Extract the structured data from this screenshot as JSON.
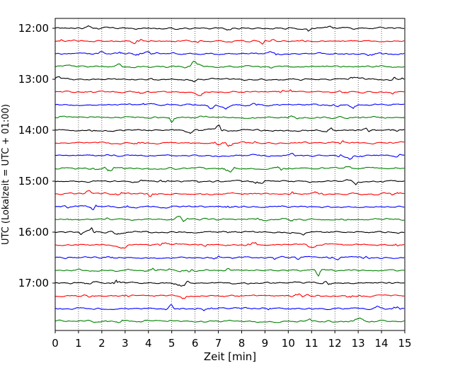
{
  "chart_data": {
    "type": "line",
    "xlabel": "Zeit  [min]",
    "ylabel": "UTC (Lokalzeit = UTC + 01:00)",
    "xlim": [
      0,
      15
    ],
    "x_ticks": [
      "0",
      "1",
      "2",
      "3",
      "4",
      "5",
      "6",
      "7",
      "8",
      "9",
      "10",
      "11",
      "12",
      "13",
      "14",
      "15"
    ],
    "y_ticks": [
      "12:00",
      "13:00",
      "14:00",
      "15:00",
      "16:00",
      "17:00"
    ],
    "rows_per_hour": 4,
    "row_start_times": [
      "12:00",
      "12:15",
      "12:30",
      "12:45",
      "13:00",
      "13:15",
      "13:30",
      "13:45",
      "14:00",
      "14:15",
      "14:30",
      "14:45",
      "15:00",
      "15:15",
      "15:30",
      "15:45",
      "16:00",
      "16:15",
      "16:30",
      "16:45",
      "17:00",
      "17:15",
      "17:30",
      "17:45"
    ],
    "trace_colors": [
      "#000000",
      "#ff0000",
      "#0000ff",
      "#008000"
    ],
    "grid_x": "dotted",
    "frame_color": "#000000"
  }
}
